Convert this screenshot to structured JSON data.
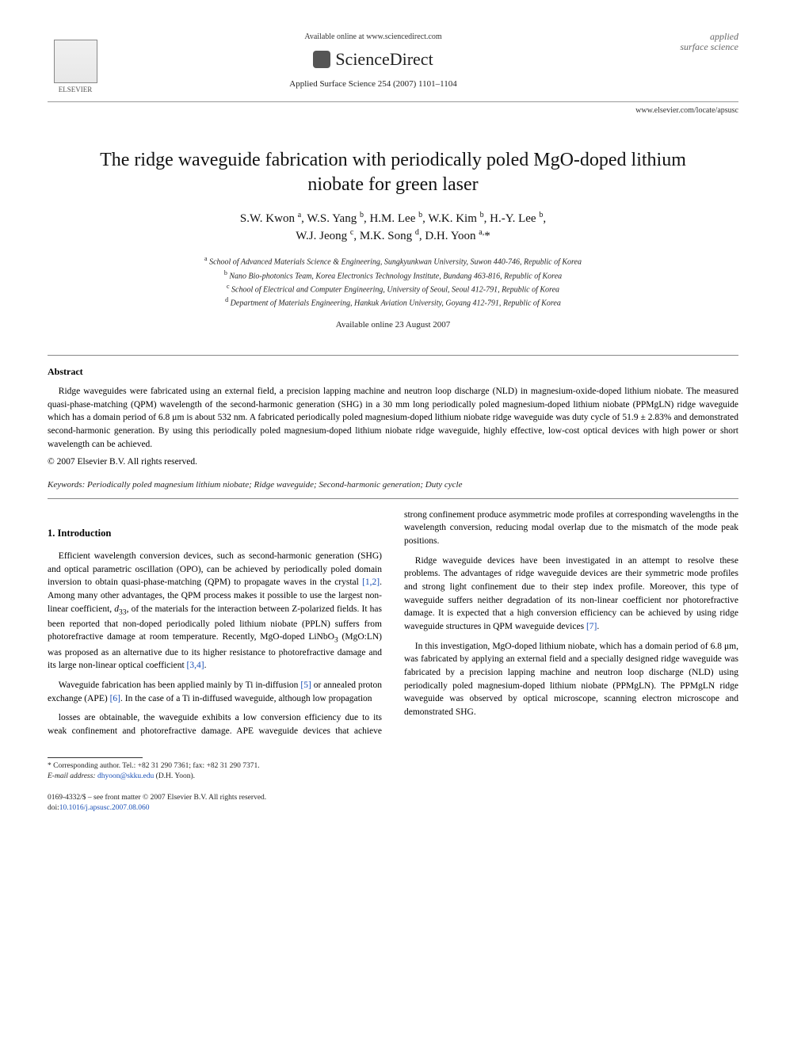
{
  "header": {
    "publisher": "ELSEVIER",
    "available_online": "Available online at www.sciencedirect.com",
    "sciencedirect": "ScienceDirect",
    "journal_ref": "Applied Surface Science 254 (2007) 1101–1104",
    "journal_name_1": "applied",
    "journal_name_2": "surface science",
    "journal_url": "www.elsevier.com/locate/apsusc"
  },
  "title": "The ridge waveguide fabrication with periodically poled MgO-doped lithium niobate for green laser",
  "authors_html": "S.W. Kwon <sup>a</sup>, W.S. Yang <sup>b</sup>, H.M. Lee <sup>b</sup>, W.K. Kim <sup>b</sup>, H.-Y. Lee <sup>b</sup>,<br>W.J. Jeong <sup>c</sup>, M.K. Song <sup>d</sup>, D.H. Yoon <sup>a,</sup>*",
  "affiliations": {
    "a": "School of Advanced Materials Science & Engineering, Sungkyunkwan University, Suwon 440-746, Republic of Korea",
    "b": "Nano Bio-photonics Team, Korea Electronics Technology Institute, Bundang 463-816, Republic of Korea",
    "c": "School of Electrical and Computer Engineering, University of Seoul, Seoul 412-791, Republic of Korea",
    "d": "Department of Materials Engineering, Hankuk Aviation University, Goyang 412-791, Republic of Korea"
  },
  "date_available": "Available online 23 August 2007",
  "abstract": {
    "heading": "Abstract",
    "text": "Ridge waveguides were fabricated using an external field, a precision lapping machine and neutron loop discharge (NLD) in magnesium-oxide-doped lithium niobate. The measured quasi-phase-matching (QPM) wavelength of the second-harmonic generation (SHG) in a 30 mm long periodically poled magnesium-doped lithium niobate (PPMgLN) ridge waveguide which has a domain period of 6.8 μm is about 532 nm. A fabricated periodically poled magnesium-doped lithium niobate ridge waveguide was duty cycle of 51.9 ± 2.83% and demonstrated second-harmonic generation. By using this periodically poled magnesium-doped lithium niobate ridge waveguide, highly effective, low-cost optical devices with high power or short wavelength can be achieved.",
    "copyright": "© 2007 Elsevier B.V. All rights reserved."
  },
  "keywords": {
    "label": "Keywords:",
    "text": "Periodically poled magnesium lithium niobate; Ridge waveguide; Second-harmonic generation; Duty cycle"
  },
  "section1": {
    "heading": "1. Introduction",
    "p1_pre": "Efficient wavelength conversion devices, such as second-harmonic generation (SHG) and optical parametric oscillation (OPO), can be achieved by periodically poled domain inversion to obtain quasi-phase-matching (QPM) to propagate waves in the crystal ",
    "p1_ref1": "[1,2]",
    "p1_mid": ". Among many other advantages, the QPM process makes it possible to use the largest non-linear coefficient, ",
    "p1_d33": "d",
    "p1_d33sub": "33",
    "p1_mid2": ", of the materials for the interaction between Z-polarized fields. It has been reported that non-doped periodically poled lithium niobate (PPLN) suffers from photorefractive damage at room temperature. Recently, MgO-doped LiNbO",
    "p1_sub3": "3",
    "p1_mid3": " (MgO:LN) was proposed as an alternative due to its higher resistance to photorefractive damage and its large non-linear optical coefficient ",
    "p1_ref2": "[3,4]",
    "p1_end": ".",
    "p2_pre": "Waveguide fabrication has been applied mainly by Ti in-diffusion ",
    "p2_ref1": "[5]",
    "p2_mid": " or annealed proton exchange (APE) ",
    "p2_ref2": "[6]",
    "p2_end": ". In the case of a Ti in-diffused waveguide, although low propagation",
    "p3": "losses are obtainable, the waveguide exhibits a low conversion efficiency due to its weak confinement and photorefractive damage. APE waveguide devices that achieve strong confinement produce asymmetric mode profiles at corresponding wavelengths in the wavelength conversion, reducing modal overlap due to the mismatch of the mode peak positions.",
    "p4_pre": "Ridge waveguide devices have been investigated in an attempt to resolve these problems. The advantages of ridge waveguide devices are their symmetric mode profiles and strong light confinement due to their step index profile. Moreover, this type of waveguide suffers neither degradation of its non-linear coefficient nor photorefractive damage. It is expected that a high conversion efficiency can be achieved by using ridge waveguide structures in QPM waveguide devices ",
    "p4_ref": "[7]",
    "p4_end": ".",
    "p5": "In this investigation, MgO-doped lithium niobate, which has a domain period of 6.8 μm, was fabricated by applying an external field and a specially designed ridge waveguide was fabricated by a precision lapping machine and neutron loop discharge (NLD) using periodically poled magnesium-doped lithium niobate (PPMgLN). The PPMgLN ridge waveguide was observed by optical microscope, scanning electron microscope and demonstrated SHG."
  },
  "footer": {
    "corresponding": "* Corresponding author. Tel.: +82 31 290 7361; fax: +82 31 290 7371.",
    "email_label": "E-mail address:",
    "email": "dhyoon@skku.edu",
    "email_suffix": "(D.H. Yoon).",
    "issn_line": "0169-4332/$ – see front matter © 2007 Elsevier B.V. All rights reserved.",
    "doi_label": "doi:",
    "doi": "10.1016/j.apsusc.2007.08.060"
  },
  "colors": {
    "link": "#1a4fb5",
    "text": "#000000",
    "rule": "#888888"
  }
}
